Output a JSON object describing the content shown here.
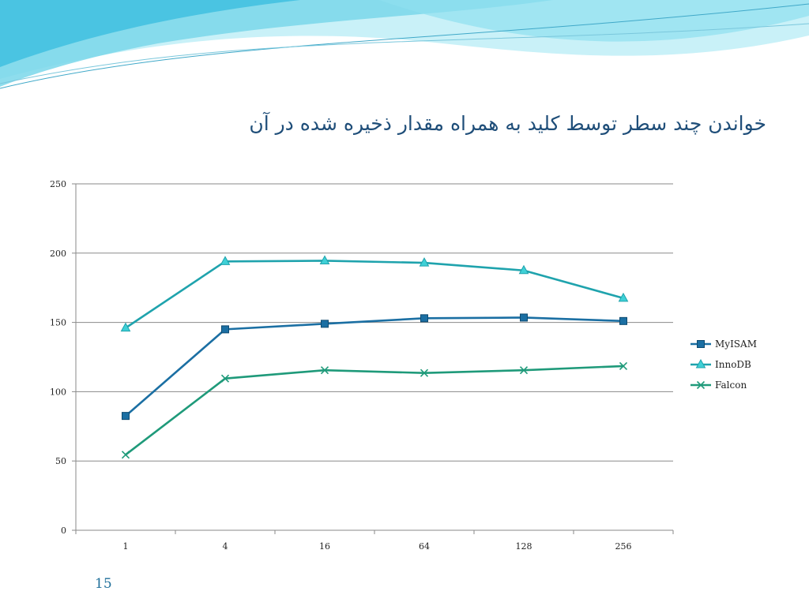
{
  "slide": {
    "title": "خواندن چند سطر توسط کلید به همراه مقدار ذخیره شده در آن",
    "page_number": "15"
  },
  "colors": {
    "wave_light": "#c9f1f8",
    "wave_mid": "#7ad7ea",
    "wave_dark": "#3fbfe0",
    "title": "#1f4e79"
  },
  "chart_data": {
    "type": "line",
    "title": "",
    "xlabel": "",
    "ylabel": "",
    "categories": [
      "1",
      "4",
      "16",
      "64",
      "128",
      "256"
    ],
    "ylim": [
      0,
      250
    ],
    "y_ticks": [
      "0",
      "50",
      "100",
      "150",
      "200",
      "250"
    ],
    "grid": true,
    "legend_position": "right",
    "series": [
      {
        "name": "MyISAM",
        "values": [
          82.5,
          145,
          149,
          153,
          153.5,
          151
        ],
        "color": "#1b6fa3",
        "marker": "square"
      },
      {
        "name": "InnoDB",
        "values": [
          146,
          194,
          194.5,
          193,
          187.5,
          167.5
        ],
        "color": "#1fa3ad",
        "marker": "triangle"
      },
      {
        "name": "Falcon",
        "values": [
          54.5,
          109.5,
          115.5,
          113.5,
          115.5,
          118.5
        ],
        "color": "#1f9a7a",
        "marker": "x"
      }
    ]
  }
}
